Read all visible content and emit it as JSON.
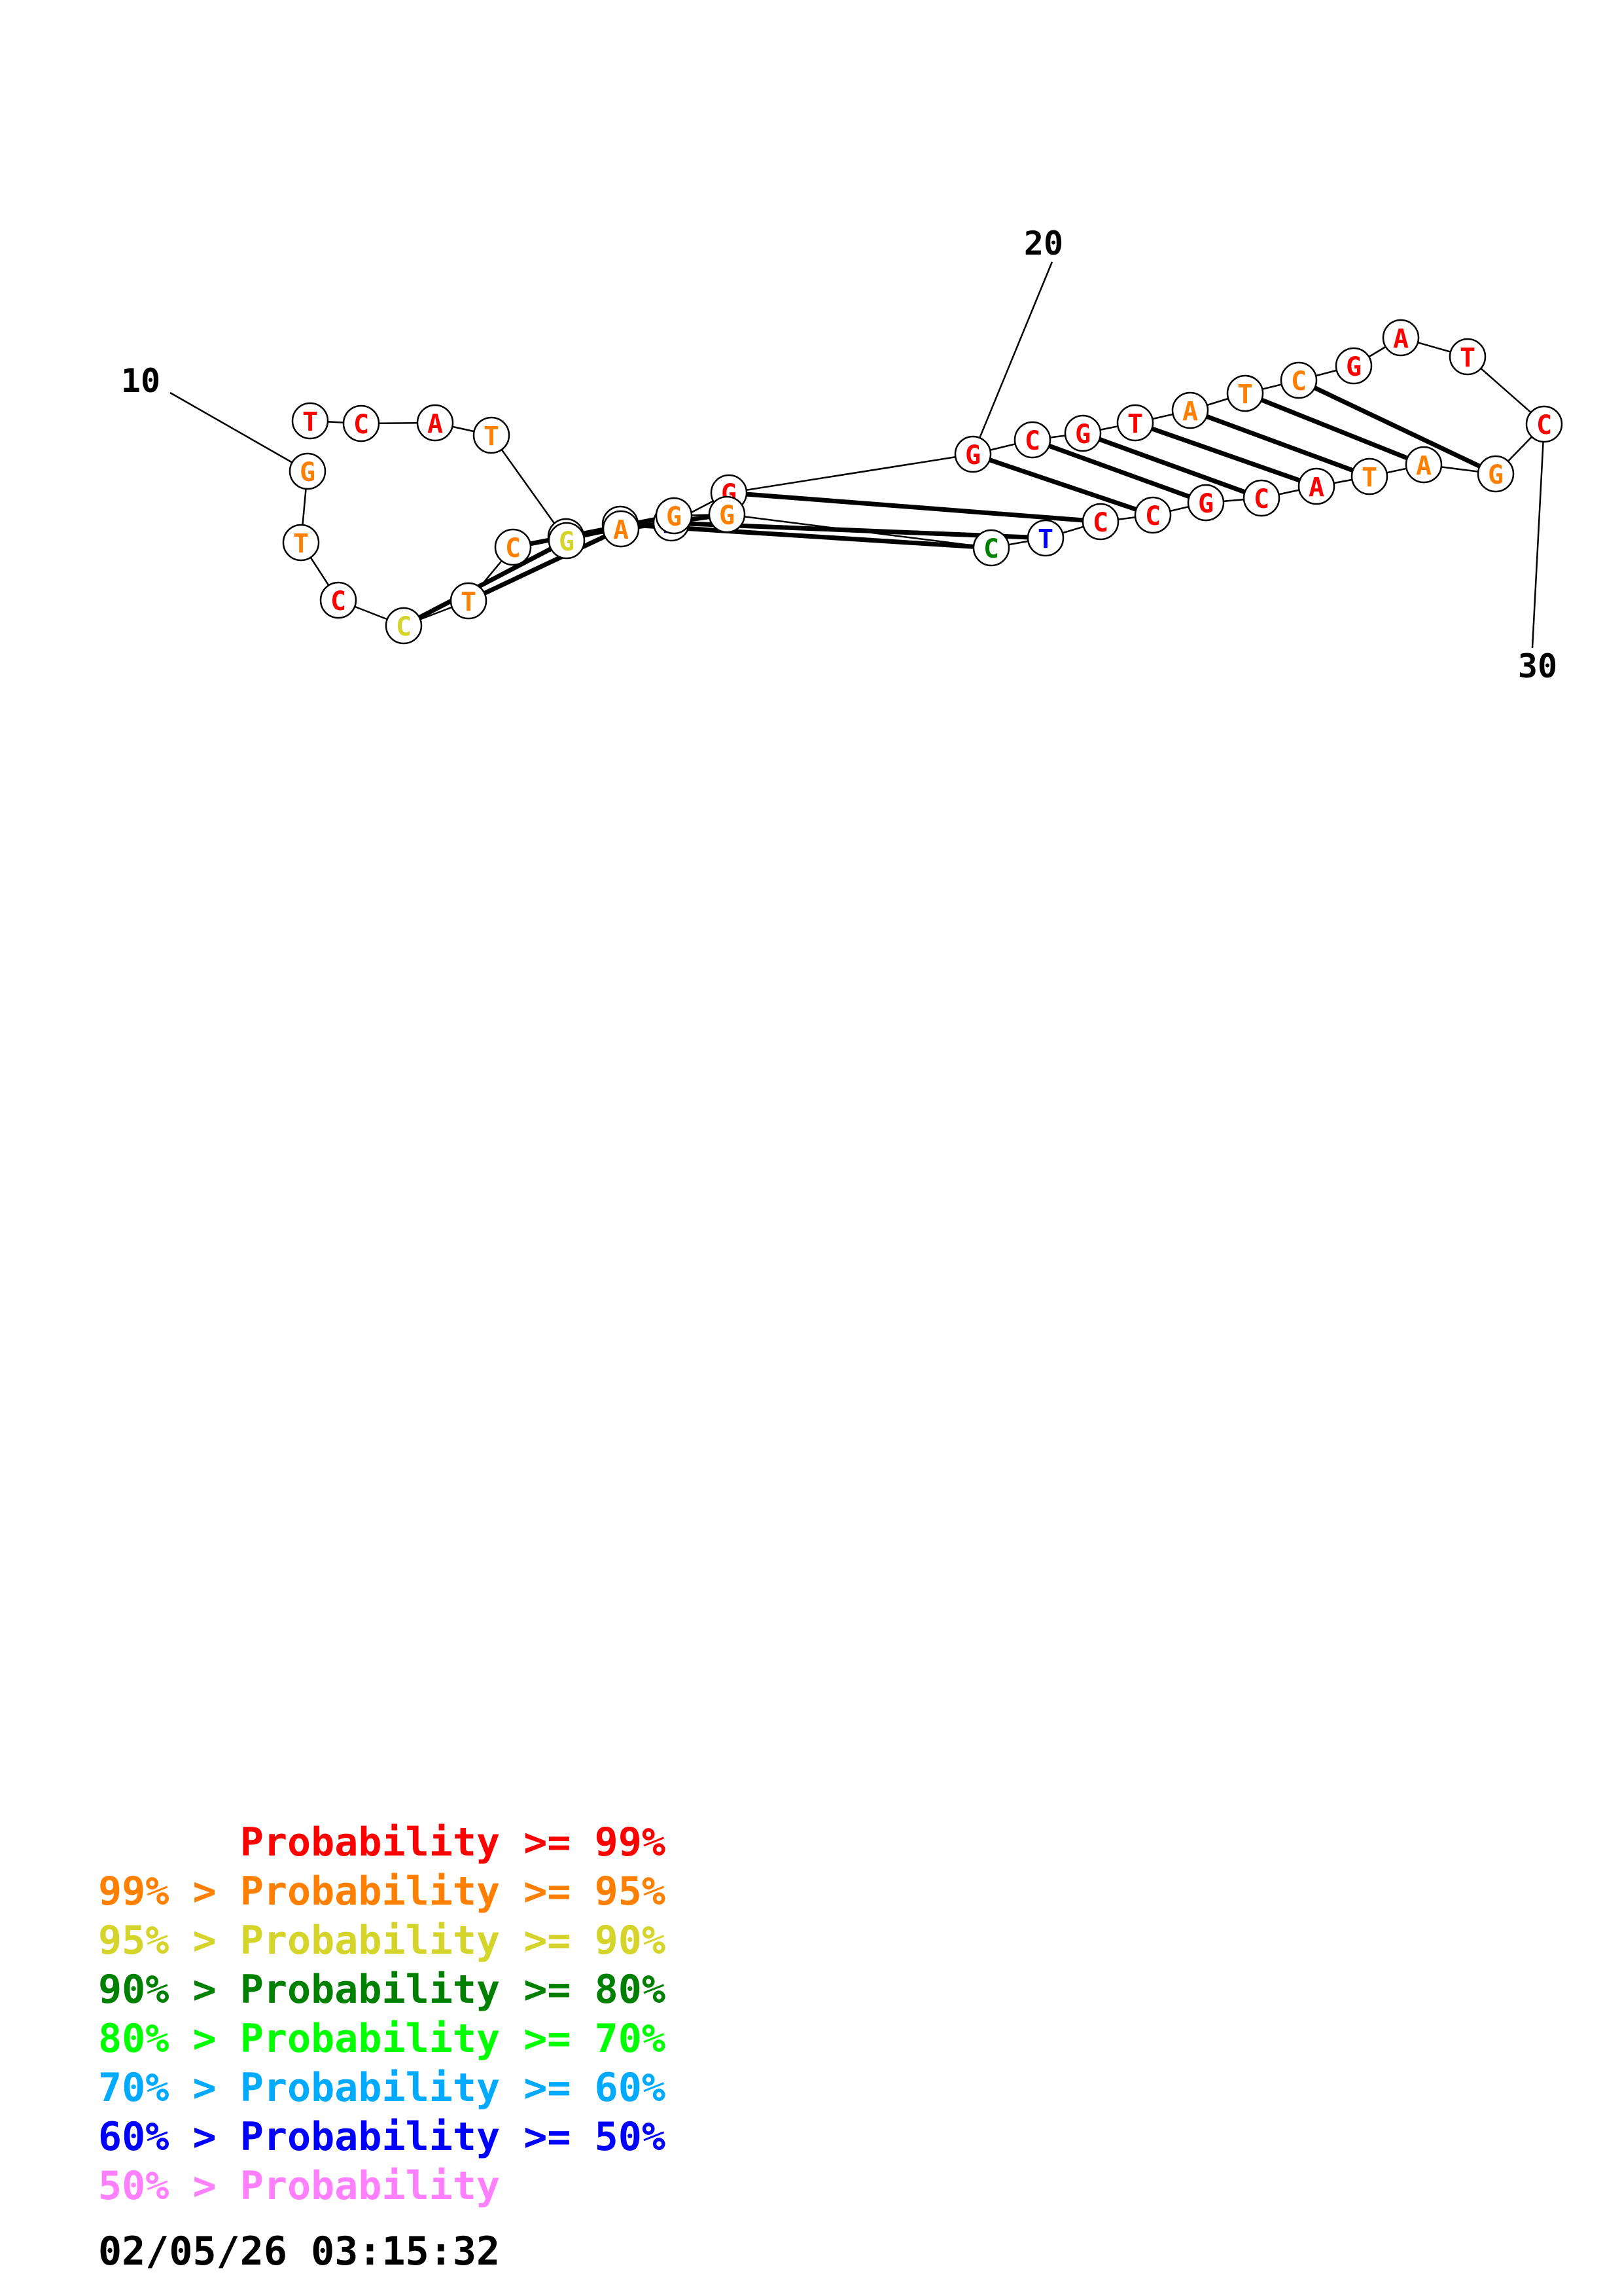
{
  "diagram": {
    "nucleotides": [
      {
        "id": 9,
        "base": "G",
        "tier": 1
      },
      {
        "id": 10,
        "base": "T",
        "tier": 1
      },
      {
        "id": 11,
        "base": "C",
        "tier": 0
      },
      {
        "id": 12,
        "base": "C",
        "tier": 2
      },
      {
        "id": 13,
        "base": "T",
        "tier": 1
      },
      {
        "id": 14,
        "base": "C",
        "tier": 1
      },
      {
        "id": 15,
        "base": "C",
        "tier": 1
      },
      {
        "id": 16,
        "base": "G",
        "tier": 3
      },
      {
        "id": 17,
        "base": "A",
        "tier": 6
      },
      {
        "id": 18,
        "base": "G",
        "tier": 0
      },
      {
        "id": 19,
        "base": "G",
        "tier": 0
      },
      {
        "id": 20,
        "base": "C",
        "tier": 0
      },
      {
        "id": 21,
        "base": "G",
        "tier": 0
      },
      {
        "id": 22,
        "base": "T",
        "tier": 0
      },
      {
        "id": 23,
        "base": "A",
        "tier": 1
      },
      {
        "id": 24,
        "base": "T",
        "tier": 1
      },
      {
        "id": 25,
        "base": "C",
        "tier": 1
      },
      {
        "id": 26,
        "base": "G",
        "tier": 0
      },
      {
        "id": 27,
        "base": "A",
        "tier": 0
      },
      {
        "id": 28,
        "base": "T",
        "tier": 0
      },
      {
        "id": 29,
        "base": "C",
        "tier": 0
      },
      {
        "id": 30,
        "base": "G",
        "tier": 1
      },
      {
        "id": 31,
        "base": "A",
        "tier": 1
      },
      {
        "id": 32,
        "base": "T",
        "tier": 1
      },
      {
        "id": 33,
        "base": "A",
        "tier": 0
      },
      {
        "id": 34,
        "base": "C",
        "tier": 0
      },
      {
        "id": 35,
        "base": "G",
        "tier": 0
      },
      {
        "id": 36,
        "base": "C",
        "tier": 0
      },
      {
        "id": 37,
        "base": "C",
        "tier": 0
      },
      {
        "id": 38,
        "base": "T",
        "tier": 6
      },
      {
        "id": 39,
        "base": "C",
        "tier": 3
      },
      {
        "id": 40,
        "base": "G",
        "tier": 1
      },
      {
        "id": 41,
        "base": "G",
        "tier": 1
      },
      {
        "id": 42,
        "base": "A",
        "tier": 1
      },
      {
        "id": 43,
        "base": "G",
        "tier": 2
      },
      {
        "id": 44,
        "base": "T",
        "tier": 1
      },
      {
        "id": 45,
        "base": "A",
        "tier": 0
      },
      {
        "id": 46,
        "base": "C",
        "tier": 0
      },
      {
        "id": 47,
        "base": "T",
        "tier": 0
      }
    ],
    "pairs": [
      [
        12,
        43
      ],
      [
        13,
        42
      ],
      [
        14,
        41
      ],
      [
        15,
        40
      ],
      [
        16,
        39
      ],
      [
        17,
        38
      ],
      [
        18,
        37
      ],
      [
        19,
        36
      ],
      [
        20,
        35
      ],
      [
        21,
        34
      ],
      [
        22,
        33
      ],
      [
        23,
        32
      ],
      [
        24,
        31
      ],
      [
        25,
        30
      ]
    ],
    "index_labels": [
      {
        "text": "10",
        "nucleotide": 9
      },
      {
        "text": "20",
        "nucleotide": 19
      },
      {
        "text": "30",
        "nucleotide": 29
      }
    ]
  },
  "colors": {
    "tiers": [
      "#ff0000",
      "#ff8000",
      "#d4d42a",
      "#008000",
      "#00ff00",
      "#00aaff",
      "#0000ff",
      "#ff80ff"
    ]
  },
  "legend": [
    {
      "text": "      Probability >= 99%",
      "color": "#ff0000"
    },
    {
      "text": "99% > Probability >= 95%",
      "color": "#ff8000"
    },
    {
      "text": "95% > Probability >= 90%",
      "color": "#d4d42a"
    },
    {
      "text": "90% > Probability >= 80%",
      "color": "#008000"
    },
    {
      "text": "80% > Probability >= 70%",
      "color": "#00ff00"
    },
    {
      "text": "70% > Probability >= 60%",
      "color": "#00aaff"
    },
    {
      "text": "60% > Probability >= 50%",
      "color": "#0000ff"
    },
    {
      "text": "50% > Probability",
      "color": "#ff80ff"
    }
  ],
  "timestamp": "02/05/26 03:15:32"
}
